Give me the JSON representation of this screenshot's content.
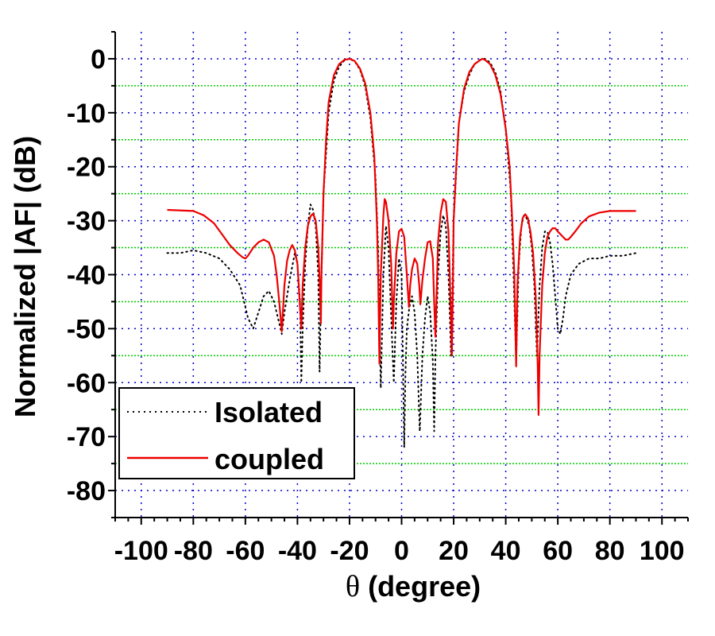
{
  "chart_data": {
    "type": "line",
    "ylabel": "Normalized |AF| (dB)",
    "xlabel_symbol": "θ",
    "xlabel_text": " (degree)",
    "xlim": [
      -110,
      110
    ],
    "ylim": [
      -85,
      5
    ],
    "x_ticks": [
      -100,
      -80,
      -60,
      -40,
      -20,
      0,
      20,
      40,
      60,
      80,
      100
    ],
    "y_ticks": [
      0,
      -10,
      -20,
      -30,
      -40,
      -50,
      -60,
      -70,
      -80
    ],
    "grid": {
      "major_color": "#0000cc",
      "minor_color": "#00cc00",
      "major_style": "dotted",
      "minor_style": "dotted"
    },
    "legend_position": "bottom-left",
    "series": [
      {
        "name": "Isolated",
        "color": "#000000",
        "style": "dotted",
        "points": [
          [
            -90,
            -36
          ],
          [
            -85,
            -36
          ],
          [
            -80,
            -35.5
          ],
          [
            -75,
            -36
          ],
          [
            -70,
            -37
          ],
          [
            -66,
            -39
          ],
          [
            -62,
            -42
          ],
          [
            -59,
            -48
          ],
          [
            -57,
            -50
          ],
          [
            -55,
            -47
          ],
          [
            -53,
            -44
          ],
          [
            -51,
            -43
          ],
          [
            -49,
            -45
          ],
          [
            -47,
            -49
          ],
          [
            -46,
            -51
          ],
          [
            -45,
            -47
          ],
          [
            -43,
            -41
          ],
          [
            -41,
            -36
          ],
          [
            -40,
            -38
          ],
          [
            -39,
            -45
          ],
          [
            -38.5,
            -60
          ],
          [
            -38,
            -50
          ],
          [
            -37,
            -38
          ],
          [
            -36,
            -31
          ],
          [
            -35,
            -27
          ],
          [
            -34,
            -28
          ],
          [
            -33,
            -31
          ],
          [
            -32,
            -40
          ],
          [
            -31.5,
            -58
          ],
          [
            -31,
            -45
          ],
          [
            -30,
            -25
          ],
          [
            -28,
            -10
          ],
          [
            -26,
            -4
          ],
          [
            -24,
            -1.5
          ],
          [
            -22,
            -0.3
          ],
          [
            -20,
            0
          ],
          [
            -18,
            -0.5
          ],
          [
            -16,
            -2
          ],
          [
            -14,
            -5
          ],
          [
            -12,
            -11
          ],
          [
            -10,
            -22
          ],
          [
            -9,
            -35
          ],
          [
            -8,
            -61
          ],
          [
            -7,
            -40
          ],
          [
            -6,
            -31
          ],
          [
            -5,
            -35
          ],
          [
            -4,
            -48
          ],
          [
            -3,
            -60
          ],
          [
            -2,
            -45
          ],
          [
            -1,
            -37
          ],
          [
            0,
            -40
          ],
          [
            0.5,
            -55
          ],
          [
            1,
            -72
          ],
          [
            1.5,
            -58
          ],
          [
            2,
            -50
          ],
          [
            3,
            -46
          ],
          [
            4,
            -44
          ],
          [
            5,
            -47
          ],
          [
            6,
            -55
          ],
          [
            7,
            -69
          ],
          [
            8,
            -55
          ],
          [
            9,
            -48
          ],
          [
            10,
            -44
          ],
          [
            11,
            -47
          ],
          [
            12,
            -56
          ],
          [
            12.5,
            -69
          ],
          [
            13,
            -55
          ],
          [
            14,
            -40
          ],
          [
            15,
            -32
          ],
          [
            16,
            -29
          ],
          [
            17,
            -31
          ],
          [
            18,
            -40
          ],
          [
            19,
            -55
          ],
          [
            20,
            -30
          ],
          [
            22,
            -12
          ],
          [
            24,
            -6
          ],
          [
            26,
            -3
          ],
          [
            28,
            -1
          ],
          [
            30,
            -0.2
          ],
          [
            32,
            0
          ],
          [
            34,
            -0.7
          ],
          [
            36,
            -2.5
          ],
          [
            38,
            -6
          ],
          [
            40,
            -13
          ],
          [
            42,
            -25
          ],
          [
            43,
            -40
          ],
          [
            44,
            -56
          ],
          [
            45,
            -38
          ],
          [
            46,
            -31
          ],
          [
            47,
            -29
          ],
          [
            48,
            -29.5
          ],
          [
            49,
            -31
          ],
          [
            50,
            -35
          ],
          [
            51,
            -42
          ],
          [
            52,
            -55
          ],
          [
            53,
            -42
          ],
          [
            54,
            -35
          ],
          [
            55,
            -32
          ],
          [
            56,
            -32
          ],
          [
            57,
            -34
          ],
          [
            58,
            -38
          ],
          [
            59,
            -44
          ],
          [
            60,
            -50
          ],
          [
            61,
            -51
          ],
          [
            62,
            -48
          ],
          [
            63,
            -44
          ],
          [
            65,
            -40
          ],
          [
            68,
            -38
          ],
          [
            72,
            -37
          ],
          [
            76,
            -37
          ],
          [
            80,
            -36.5
          ],
          [
            85,
            -36.5
          ],
          [
            90,
            -36
          ]
        ]
      },
      {
        "name": "coupled",
        "color": "#ee0000",
        "style": "solid",
        "points": [
          [
            -90,
            -28
          ],
          [
            -80,
            -28.2
          ],
          [
            -76,
            -29
          ],
          [
            -72,
            -30.5
          ],
          [
            -69,
            -32.5
          ],
          [
            -66,
            -34.5
          ],
          [
            -63,
            -36
          ],
          [
            -61,
            -36.8
          ],
          [
            -60,
            -37
          ],
          [
            -59,
            -36.5
          ],
          [
            -57,
            -35
          ],
          [
            -55,
            -34
          ],
          [
            -53,
            -33.5
          ],
          [
            -51,
            -34
          ],
          [
            -49,
            -36.5
          ],
          [
            -48,
            -40
          ],
          [
            -47,
            -45
          ],
          [
            -46,
            -50.5
          ],
          [
            -45,
            -42
          ],
          [
            -44,
            -37.5
          ],
          [
            -43,
            -35.5
          ],
          [
            -42,
            -34.5
          ],
          [
            -41,
            -35.5
          ],
          [
            -40,
            -38
          ],
          [
            -39.5,
            -42
          ],
          [
            -38.5,
            -50
          ],
          [
            -38,
            -42
          ],
          [
            -37,
            -35
          ],
          [
            -36,
            -31
          ],
          [
            -35,
            -29.2
          ],
          [
            -34,
            -28.7
          ],
          [
            -33,
            -30
          ],
          [
            -32,
            -35
          ],
          [
            -31.5,
            -41
          ],
          [
            -31,
            -49
          ],
          [
            -30.8,
            -40
          ],
          [
            -30,
            -25
          ],
          [
            -29,
            -15
          ],
          [
            -28,
            -8
          ],
          [
            -26,
            -3
          ],
          [
            -24,
            -1
          ],
          [
            -22,
            -0.2
          ],
          [
            -20,
            0
          ],
          [
            -18,
            -0.4
          ],
          [
            -16,
            -1.8
          ],
          [
            -14,
            -4.5
          ],
          [
            -12,
            -10
          ],
          [
            -10.5,
            -18
          ],
          [
            -9.5,
            -30
          ],
          [
            -9,
            -40
          ],
          [
            -8.5,
            -56.5
          ],
          [
            -8,
            -40
          ],
          [
            -7,
            -29
          ],
          [
            -6.5,
            -26
          ],
          [
            -6,
            -26.5
          ],
          [
            -5,
            -30
          ],
          [
            -4,
            -38
          ],
          [
            -3.3,
            -50
          ],
          [
            -3,
            -45
          ],
          [
            -2,
            -36
          ],
          [
            -1,
            -32
          ],
          [
            0,
            -31.5
          ],
          [
            1,
            -33
          ],
          [
            2,
            -40
          ],
          [
            2.8,
            -46
          ],
          [
            3.3,
            -42
          ],
          [
            4,
            -39
          ],
          [
            5,
            -37
          ],
          [
            6,
            -38
          ],
          [
            6.8,
            -42
          ],
          [
            7.2,
            -45.5
          ],
          [
            8,
            -41
          ],
          [
            9,
            -37
          ],
          [
            10,
            -34
          ],
          [
            11,
            -33.8
          ],
          [
            12,
            -37
          ],
          [
            12.5,
            -45
          ],
          [
            13,
            -51.5
          ],
          [
            13.5,
            -43
          ],
          [
            14,
            -34
          ],
          [
            15,
            -28.5
          ],
          [
            16,
            -26
          ],
          [
            17,
            -26.5
          ],
          [
            18,
            -32
          ],
          [
            18.8,
            -45
          ],
          [
            19.3,
            -55
          ],
          [
            19.7,
            -42
          ],
          [
            20,
            -30
          ],
          [
            21,
            -20
          ],
          [
            22,
            -12
          ],
          [
            24,
            -5.5
          ],
          [
            26,
            -2.5
          ],
          [
            28,
            -1
          ],
          [
            30,
            -0.3
          ],
          [
            31,
            0
          ],
          [
            32,
            -0.2
          ],
          [
            34,
            -1
          ],
          [
            36,
            -3
          ],
          [
            38,
            -6.5
          ],
          [
            40,
            -13
          ],
          [
            41.5,
            -20
          ],
          [
            42.5,
            -30
          ],
          [
            43.3,
            -40
          ],
          [
            44,
            -57
          ],
          [
            44.5,
            -42
          ],
          [
            45.5,
            -33
          ],
          [
            46.5,
            -29.5
          ],
          [
            47.5,
            -28.8
          ],
          [
            48.5,
            -29.5
          ],
          [
            49.5,
            -32
          ],
          [
            50.5,
            -36
          ],
          [
            51.5,
            -44
          ],
          [
            52.3,
            -57
          ],
          [
            52.6,
            -66
          ],
          [
            53,
            -55
          ],
          [
            54,
            -42
          ],
          [
            55,
            -36
          ],
          [
            56,
            -33
          ],
          [
            57,
            -32
          ],
          [
            58,
            -31.4
          ],
          [
            59,
            -31.4
          ],
          [
            60,
            -32
          ],
          [
            62,
            -33
          ],
          [
            63,
            -33.5
          ],
          [
            64,
            -33.5
          ],
          [
            65,
            -33
          ],
          [
            67,
            -31.8
          ],
          [
            69,
            -30.5
          ],
          [
            72,
            -29.2
          ],
          [
            76,
            -28.5
          ],
          [
            80,
            -28.2
          ],
          [
            90,
            -28.2
          ]
        ]
      }
    ]
  }
}
